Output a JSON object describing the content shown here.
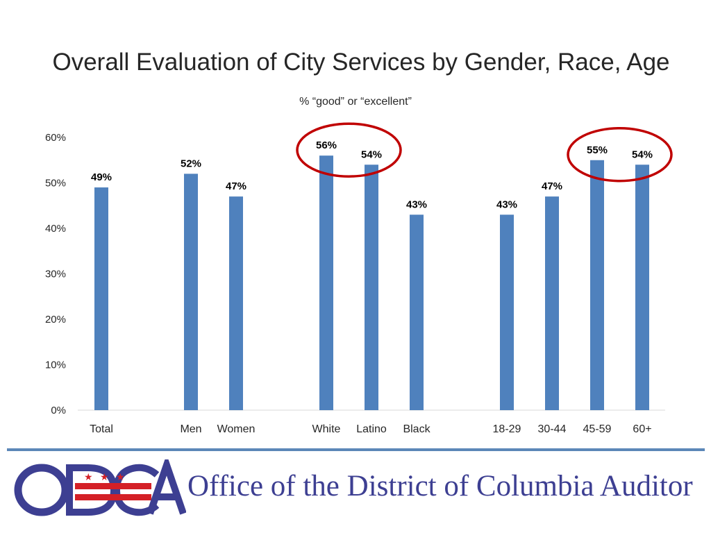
{
  "header": {
    "title": "Overall Evaluation of City Services by Gender, Race, Age",
    "subtitle": "% “good” or “excellent”"
  },
  "chart_data": {
    "type": "bar",
    "categories": [
      "Total",
      "Men",
      "Women",
      "White",
      "Latino",
      "Black",
      "18-29",
      "30-44",
      "45-59",
      "60+"
    ],
    "values": [
      49,
      52,
      47,
      56,
      54,
      43,
      43,
      47,
      55,
      54
    ],
    "data_labels": [
      "49%",
      "52%",
      "47%",
      "56%",
      "54%",
      "43%",
      "43%",
      "47%",
      "55%",
      "54%"
    ],
    "yticks": [
      "0%",
      "10%",
      "20%",
      "30%",
      "40%",
      "50%",
      "60%"
    ],
    "ylim": [
      0,
      60
    ],
    "bar_color": "#4f81bd",
    "highlight_color": "#c00000",
    "highlighted_groups": [
      [
        "White",
        "Latino"
      ],
      [
        "45-59",
        "60+"
      ]
    ],
    "grid": false
  },
  "footer": {
    "logo_text": "ODCA",
    "org_name": "Office of the District of Columbia Auditor",
    "logo_colors": {
      "blue": "#3d3f92",
      "red": "#d42027"
    }
  }
}
